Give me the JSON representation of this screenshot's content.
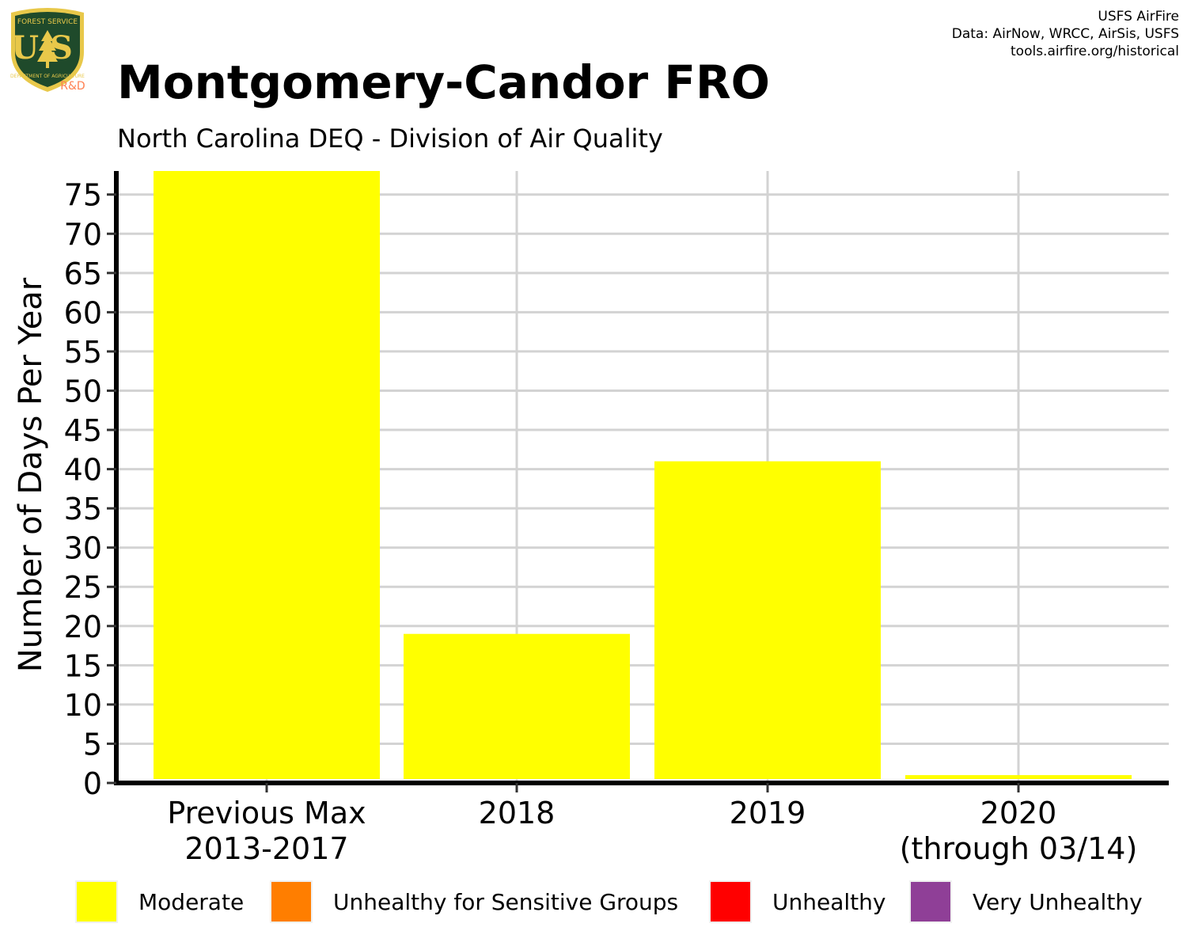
{
  "header": {
    "title": "Montgomery-Candor FRO",
    "subtitle": "North Carolina DEQ - Division of Air Quality",
    "credits": [
      "USFS AirFire",
      "Data: AirNow, WRCC, AirSis, USFS",
      "tools.airfire.org/historical"
    ]
  },
  "logo": {
    "top_text": "FOREST SERVICE",
    "letters": "US",
    "bottom_text": "DEPARTMENT OF AGRICULTURE",
    "badge": "R&D",
    "colors": {
      "shield": "#1f4a2b",
      "gold": "#e8c84a",
      "badge": "#ff7f50"
    }
  },
  "chart_data": {
    "type": "bar",
    "categories": [
      [
        "Previous Max",
        "2013-2017"
      ],
      [
        "2018"
      ],
      [
        "2019"
      ],
      [
        "2020",
        "(through 03/14)"
      ]
    ],
    "series": [
      {
        "name": "Moderate",
        "color": "#ffff00",
        "values": [
          78,
          19,
          41,
          1
        ]
      },
      {
        "name": "Unhealthy for Sensitive Groups",
        "color": "#ff7e00",
        "values": [
          0,
          0,
          0,
          0
        ]
      },
      {
        "name": "Unhealthy",
        "color": "#ff0000",
        "values": [
          0,
          0,
          0,
          0
        ]
      },
      {
        "name": "Very Unhealthy",
        "color": "#8f3f97",
        "values": [
          0,
          0,
          0,
          0
        ]
      }
    ],
    "ylabel": "Number of Days Per Year",
    "xlabel": "",
    "ylim": [
      0,
      78
    ],
    "yticks": [
      0,
      5,
      10,
      15,
      20,
      25,
      30,
      35,
      40,
      45,
      50,
      55,
      60,
      65,
      70,
      75
    ],
    "grid": true,
    "legend_position": "bottom"
  },
  "legend": {
    "items": [
      {
        "label": "Moderate",
        "color": "#ffff00"
      },
      {
        "label": "Unhealthy for Sensitive Groups",
        "color": "#ff7e00"
      },
      {
        "label": "Unhealthy",
        "color": "#ff0000"
      },
      {
        "label": "Very Unhealthy",
        "color": "#8f3f97"
      }
    ]
  }
}
